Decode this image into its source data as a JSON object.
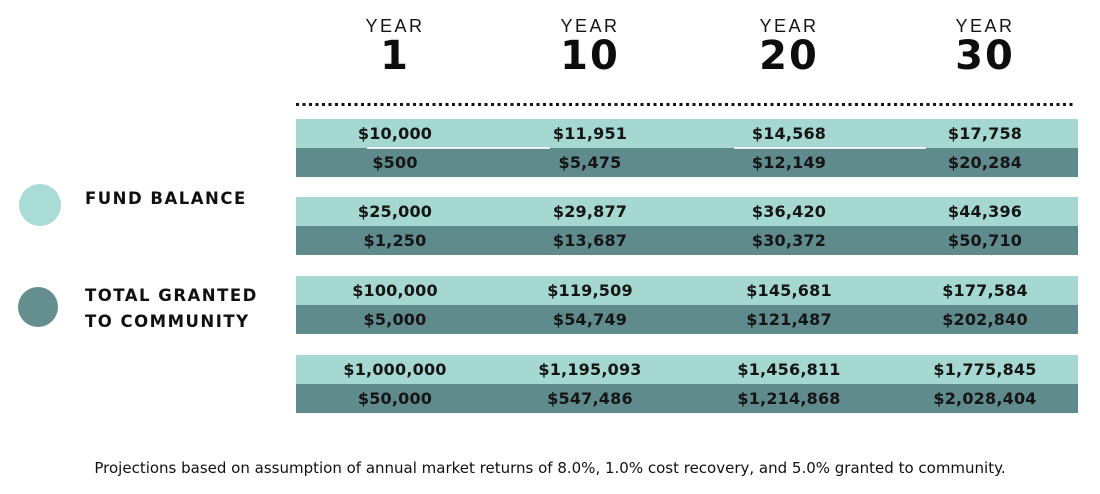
{
  "colors": {
    "fund_balance_row": "#a5d8d0",
    "granted_row": "#5f8b8c",
    "fund_balance_dot": "#a8dcd4",
    "granted_dot": "#648f8e",
    "text": "#141414"
  },
  "header": {
    "columns": [
      {
        "label": "YEAR",
        "number": "1"
      },
      {
        "label": "YEAR",
        "number": "10"
      },
      {
        "label": "YEAR",
        "number": "20"
      },
      {
        "label": "YEAR",
        "number": "30"
      }
    ]
  },
  "legend": {
    "fund_balance_label": "FUND BALANCE",
    "granted_line1": "TOTAL GRANTED",
    "granted_line2": "TO COMMUNITY"
  },
  "footnote": "Projections based on assumption of annual market returns of 8.0%, 1.0% cost recovery, and 5.0% granted to community.",
  "chart_data": {
    "type": "table",
    "columns": [
      "Year 1",
      "Year 10",
      "Year 20",
      "Year 30"
    ],
    "legend": [
      "Fund Balance",
      "Total Granted to Community"
    ],
    "groups": [
      {
        "fund_balance": [
          "$10,000",
          "$11,951",
          "$14,568",
          "$17,758"
        ],
        "total_granted": [
          "$500",
          "$5,475",
          "$12,149",
          "$20,284"
        ]
      },
      {
        "fund_balance": [
          "$25,000",
          "$29,877",
          "$36,420",
          "$44,396"
        ],
        "total_granted": [
          "$1,250",
          "$13,687",
          "$30,372",
          "$50,710"
        ]
      },
      {
        "fund_balance": [
          "$100,000",
          "$119,509",
          "$145,681",
          "$177,584"
        ],
        "total_granted": [
          "$5,000",
          "$54,749",
          "$121,487",
          "$202,840"
        ]
      },
      {
        "fund_balance": [
          "$1,000,000",
          "$1,195,093",
          "$1,456,811",
          "$1,775,845"
        ],
        "total_granted": [
          "$50,000",
          "$547,486",
          "$1,214,868",
          "$2,028,404"
        ]
      }
    ],
    "footnote": "Projections based on assumption of annual market returns of 8.0%, 1.0% cost recovery, and 5.0% granted to community."
  }
}
